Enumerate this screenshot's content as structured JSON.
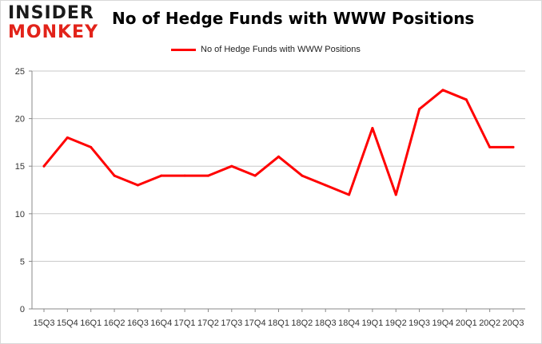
{
  "logo": {
    "line1": "INSIDER",
    "line2": "MONKEY"
  },
  "chart_data": {
    "type": "line",
    "title": "No of Hedge Funds with WWW Positions",
    "xlabel": "",
    "ylabel": "",
    "ylim": [
      0,
      25
    ],
    "yticks": [
      0,
      5,
      10,
      15,
      20,
      25
    ],
    "grid": true,
    "legend_position": "top-center",
    "categories": [
      "15Q3",
      "15Q4",
      "16Q1",
      "16Q2",
      "16Q3",
      "16Q4",
      "17Q1",
      "17Q2",
      "17Q3",
      "17Q4",
      "18Q1",
      "18Q2",
      "18Q3",
      "18Q4",
      "19Q1",
      "19Q2",
      "19Q3",
      "19Q4",
      "20Q1",
      "20Q2",
      "20Q3"
    ],
    "series": [
      {
        "name": "No of Hedge Funds with WWW Positions",
        "color": "#ff0000",
        "values": [
          15,
          18,
          17,
          14,
          13,
          14,
          14,
          14,
          15,
          14,
          16,
          14,
          13,
          12,
          19,
          12,
          21,
          23,
          22,
          17,
          17
        ]
      }
    ]
  }
}
